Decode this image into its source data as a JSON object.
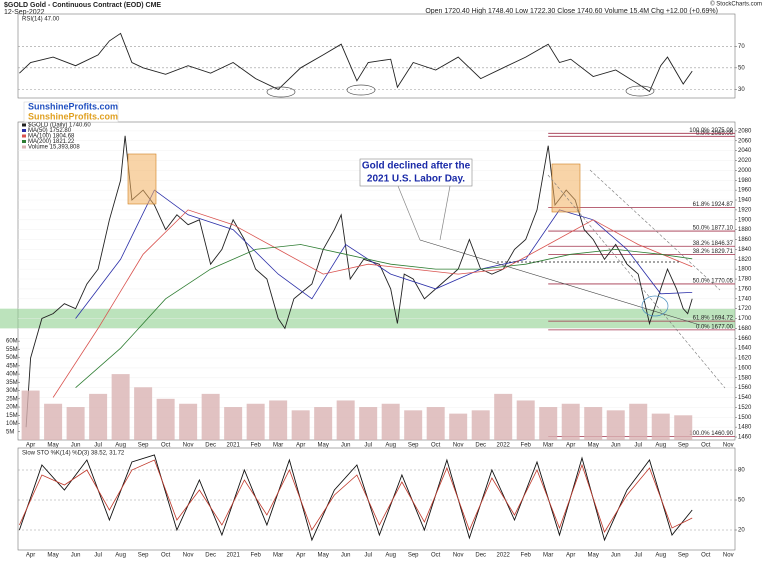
{
  "header": {
    "title": "$GOLD Gold - Continuous Contract (EOD) CME",
    "date": "12-Sep-2022",
    "quote": "Open 1720.40 High 1748.40 Low 1722.30 Close 1740.60 Volume 15.4M Chg +12.00 (+0.69%)",
    "credit": "© StockCharts.com"
  },
  "logo": "SunshineProfits.com",
  "annotation": [
    "Gold declined after the",
    "2021 U.S. Labor Day."
  ],
  "months": [
    "Apr",
    "May",
    "Jun",
    "Jul",
    "Aug",
    "Sep",
    "Oct",
    "Nov",
    "Dec",
    "2021",
    "Feb",
    "Mar",
    "Apr",
    "May",
    "Jun",
    "Jul",
    "Aug",
    "Sep",
    "Oct",
    "Nov",
    "Dec",
    "2022",
    "Feb",
    "Mar",
    "Apr",
    "May",
    "Jun",
    "Jul",
    "Aug",
    "Sep",
    "Oct",
    "Nov"
  ],
  "chart_data": [
    {
      "type": "line",
      "title": "RSI(14) 47.00",
      "xlim": [
        -0.56,
        31.3
      ],
      "ylim": [
        22,
        100
      ],
      "yticks": [
        30,
        50,
        70
      ],
      "grid": true,
      "series": [
        {
          "name": "RSI(14)",
          "color": "#222222",
          "x": [
            -0.5,
            0,
            1,
            2,
            3,
            3.5,
            4,
            4.5,
            5,
            6,
            7,
            8,
            9,
            10,
            11,
            12,
            13,
            13.8,
            14.5,
            15,
            16,
            16.3,
            17,
            18,
            19,
            20,
            21,
            22,
            23,
            23.5,
            24,
            25,
            26,
            27,
            27.5,
            28,
            28.3,
            29,
            29.4
          ],
          "values": [
            45,
            55,
            60,
            52,
            62,
            75,
            82,
            55,
            50,
            44,
            52,
            45,
            55,
            40,
            30,
            50,
            62,
            72,
            38,
            55,
            58,
            32,
            55,
            48,
            60,
            40,
            50,
            60,
            72,
            55,
            58,
            42,
            48,
            35,
            28,
            52,
            60,
            35,
            47
          ]
        }
      ]
    },
    {
      "type": "line",
      "xlim": [
        -0.56,
        31.3
      ],
      "ylim": [
        1454,
        2098
      ],
      "yticks": [
        2080,
        2060,
        2040,
        2020,
        2000,
        1980,
        1960,
        1940,
        1920,
        1900,
        1880,
        1860,
        1840,
        1820,
        1800,
        1780,
        1760,
        1740,
        1720,
        1700,
        1680,
        1660,
        1640,
        1620,
        1600,
        1580,
        1560,
        1540,
        1520,
        1500,
        1480,
        1460
      ],
      "y2lim": [
        0,
        193
      ],
      "y2ticks": [
        {
          "value": 60,
          "label": "60M"
        },
        {
          "value": 55,
          "label": "55M"
        },
        {
          "value": 50,
          "label": "50M"
        },
        {
          "value": 45,
          "label": "45M"
        },
        {
          "value": 40,
          "label": "40M"
        },
        {
          "value": 35,
          "label": "35M"
        },
        {
          "value": 30,
          "label": "30M"
        },
        {
          "value": 25,
          "label": "25M"
        },
        {
          "value": 20,
          "label": "20M"
        },
        {
          "value": 15,
          "label": "15M"
        },
        {
          "value": 10,
          "label": "10M"
        },
        {
          "value": 5,
          "label": "5M"
        }
      ],
      "grid": true,
      "support_zone": [
        1680,
        1720
      ],
      "zone_color": "#8fd18f",
      "fib_color": "#a0304a",
      "fibs": [
        {
          "label": "0.0% 2069.00",
          "value": 2069
        },
        {
          "label": "100.0% 2075.09",
          "value": 2075.09
        },
        {
          "label": "61.8% 1924.87",
          "value": 1924.87
        },
        {
          "label": "50.0% 1877.10",
          "value": 1877.1
        },
        {
          "label": "38.2% 1846.37",
          "value": 1846.37
        },
        {
          "label": "38.2% 1829.71",
          "value": 1829.71
        },
        {
          "label": "50.0% 1770.05",
          "value": 1770.05
        },
        {
          "label": "61.8% 1694.72",
          "value": 1694.72
        },
        {
          "label": "0.0% 1677.00",
          "value": 1677
        },
        {
          "label": "100.0% 1460.90",
          "value": 1460.9
        }
      ],
      "series": [
        {
          "name": "$GOLD (Daily) 1740.60",
          "color": "#222222",
          "x": [
            -0.2,
            0,
            0.5,
            1,
            1.5,
            2,
            2.5,
            3,
            3.5,
            4,
            4.2,
            4.5,
            5,
            5.5,
            6,
            6.5,
            7,
            7.5,
            8,
            8.5,
            9,
            9.5,
            10,
            10.5,
            11,
            11.3,
            11.7,
            12.5,
            13,
            13.5,
            13.8,
            14.2,
            14.8,
            15.5,
            16,
            16.3,
            16.6,
            17,
            17.5,
            18,
            18.5,
            19,
            19.5,
            20,
            20.5,
            21,
            21.5,
            22,
            22.5,
            23,
            23.3,
            23.8,
            24.2,
            24.6,
            25,
            25.5,
            26,
            26.5,
            27,
            27.5,
            28,
            28.3,
            28.7,
            29,
            29.2,
            29.4
          ],
          "values": [
            1480,
            1620,
            1700,
            1710,
            1730,
            1720,
            1770,
            1800,
            1900,
            1980,
            2070,
            1940,
            1960,
            1930,
            1880,
            1910,
            1890,
            1900,
            1810,
            1840,
            1900,
            1860,
            1800,
            1780,
            1700,
            1680,
            1740,
            1770,
            1840,
            1880,
            1910,
            1780,
            1820,
            1810,
            1760,
            1690,
            1790,
            1780,
            1740,
            1760,
            1780,
            1800,
            1860,
            1800,
            1790,
            1800,
            1840,
            1860,
            1920,
            2050,
            1930,
            1960,
            1940,
            1880,
            1860,
            1820,
            1850,
            1810,
            1790,
            1690,
            1760,
            1800,
            1760,
            1720,
            1710,
            1740
          ]
        },
        {
          "name": "MA(50) 1752.80",
          "color": "#2b2fa8",
          "x": [
            2,
            4,
            5.5,
            7,
            9,
            11,
            12.5,
            14,
            16,
            18,
            20,
            22,
            23.5,
            25,
            26.5,
            28,
            29.4
          ],
          "values": [
            1700,
            1820,
            1960,
            1910,
            1880,
            1790,
            1740,
            1850,
            1790,
            1760,
            1800,
            1820,
            1920,
            1900,
            1840,
            1750,
            1753
          ]
        },
        {
          "name": "MA(100) 1804.68",
          "color": "#d9534f",
          "x": [
            1,
            3,
            5,
            7,
            9,
            11,
            13,
            15,
            17,
            19,
            21,
            23,
            25,
            27,
            29.4
          ],
          "values": [
            1540,
            1680,
            1830,
            1920,
            1890,
            1840,
            1790,
            1810,
            1800,
            1790,
            1800,
            1850,
            1900,
            1850,
            1805
          ]
        },
        {
          "name": "MA(200) 1821.22",
          "color": "#2e7d32",
          "x": [
            2,
            4,
            6,
            8,
            10,
            12,
            14,
            16,
            18,
            20,
            22,
            24,
            26,
            28,
            29.4
          ],
          "values": [
            1560,
            1640,
            1740,
            1800,
            1840,
            1850,
            1830,
            1810,
            1800,
            1800,
            1810,
            1830,
            1840,
            1830,
            1821
          ]
        },
        {
          "name": "Volume 15,393,808",
          "color": "#d9b3b3",
          "axis": "y2",
          "x": [
            0,
            1,
            2,
            3,
            4,
            5,
            6,
            7,
            8,
            9,
            10,
            11,
            12,
            13,
            14,
            15,
            16,
            17,
            18,
            19,
            20,
            21,
            22,
            23,
            24,
            25,
            26,
            27,
            28,
            29
          ],
          "values": [
            30,
            22,
            20,
            28,
            40,
            32,
            25,
            22,
            28,
            20,
            22,
            24,
            18,
            20,
            24,
            20,
            22,
            18,
            20,
            16,
            18,
            28,
            24,
            20,
            22,
            20,
            18,
            22,
            16,
            15
          ]
        }
      ]
    },
    {
      "type": "line",
      "title": "Slow STO %K(14) %D(3) 38.52, 31.72",
      "xlim": [
        -0.56,
        31.3
      ],
      "ylim": [
        0,
        102
      ],
      "yticks": [
        20,
        50,
        80
      ],
      "grid": true,
      "series": [
        {
          "name": "%K(14)",
          "color": "#111111",
          "x": [
            -0.5,
            0.5,
            1.5,
            2.5,
            3.5,
            4.5,
            5.5,
            6.5,
            7.5,
            8.5,
            9.5,
            10.5,
            11.5,
            12.5,
            13.5,
            14.5,
            15.5,
            16.5,
            17.5,
            18.5,
            19.5,
            20.5,
            21.5,
            22.5,
            23.5,
            24.5,
            25.5,
            26.5,
            27.5,
            28.5,
            29.4
          ],
          "values": [
            20,
            85,
            60,
            90,
            30,
            88,
            95,
            20,
            70,
            15,
            80,
            25,
            90,
            10,
            60,
            85,
            15,
            75,
            20,
            90,
            12,
            80,
            30,
            88,
            15,
            92,
            10,
            60,
            90,
            15,
            40
          ]
        },
        {
          "name": "%D(3)",
          "color": "#c0392b",
          "x": [
            -0.5,
            0.5,
            1.5,
            2.5,
            3.5,
            4.5,
            5.5,
            6.5,
            7.5,
            8.5,
            9.5,
            10.5,
            11.5,
            12.5,
            13.5,
            14.5,
            15.5,
            16.5,
            17.5,
            18.5,
            19.5,
            20.5,
            21.5,
            22.5,
            23.5,
            24.5,
            25.5,
            26.5,
            27.5,
            28.5,
            29.4
          ],
          "values": [
            25,
            75,
            65,
            80,
            40,
            80,
            90,
            30,
            60,
            25,
            70,
            35,
            80,
            20,
            55,
            75,
            25,
            68,
            28,
            82,
            20,
            72,
            35,
            80,
            22,
            85,
            18,
            55,
            82,
            22,
            32
          ]
        }
      ]
    }
  ]
}
